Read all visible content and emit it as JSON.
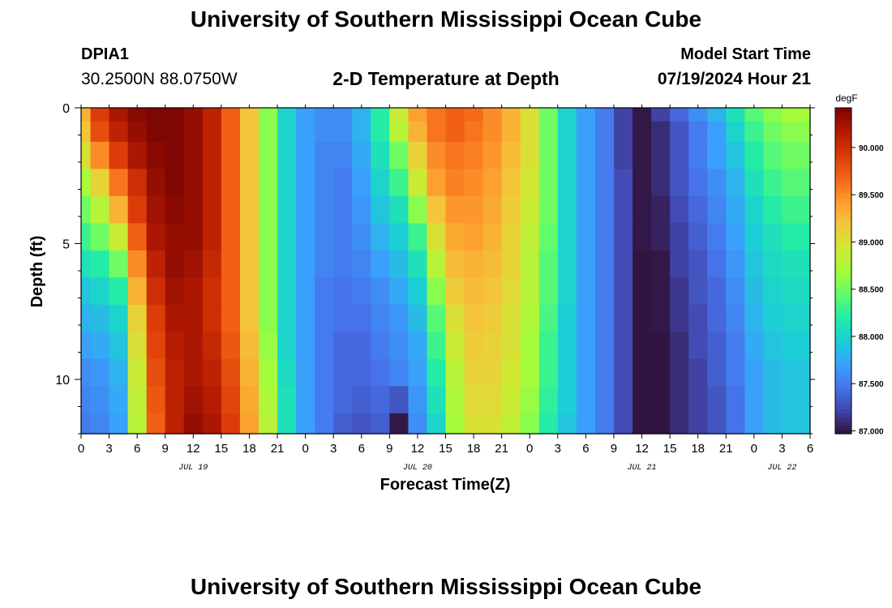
{
  "header": {
    "title": "University of Southern Mississippi Ocean Cube",
    "station": "DPIA1",
    "coords": "30.2500N  88.0750W",
    "plot_title": "2-D Temperature at Depth",
    "start_label": "Model Start Time",
    "start_value": "07/19/2024 Hour 21"
  },
  "footer": {
    "title": "University of Southern Mississippi Ocean Cube"
  },
  "colors": {
    "scale": [
      "#30123b",
      "#4145ab",
      "#4675ed",
      "#39a2fc",
      "#1bcfd4",
      "#24eca6",
      "#61fc6c",
      "#a4fc3b",
      "#d1e834",
      "#f3c63a",
      "#fe9b2d",
      "#f36315",
      "#d93806",
      "#b11901",
      "#7a0403"
    ]
  },
  "chart_data": {
    "type": "heatmap",
    "xlabel": "Forecast Time(Z)",
    "ylabel": "Depth (ft)",
    "x_tick_labels": [
      "0",
      "3",
      "6",
      "9",
      "12",
      "15",
      "18",
      "21",
      "0",
      "3",
      "6",
      "9",
      "12",
      "15",
      "18",
      "21",
      "0",
      "3",
      "6",
      "9",
      "12",
      "15",
      "18",
      "21",
      "0",
      "3",
      "6"
    ],
    "date_labels": [
      {
        "text": "JUL 19",
        "hour": 12
      },
      {
        "text": "JUL 20",
        "hour": 36
      },
      {
        "text": "JUL 21",
        "hour": 60
      },
      {
        "text": "JUL 22",
        "hour": 75
      }
    ],
    "x_range_hours": [
      0,
      78
    ],
    "y_tick_labels": [
      "0",
      "5",
      "10"
    ],
    "y_ticks": [
      0,
      5,
      10
    ],
    "ylim": [
      0,
      12
    ],
    "colorbar": {
      "unit": "degF",
      "min": 86.97,
      "max": 90.42,
      "tick_labels": [
        "87.000",
        "87.500",
        "88.000",
        "88.500",
        "89.000",
        "89.500",
        "90.000"
      ],
      "ticks": [
        87.0,
        87.5,
        88.0,
        88.5,
        89.0,
        89.5,
        90.0
      ]
    },
    "depth_levels_ft": [
      0.25,
      0.75,
      1.75,
      2.75,
      3.75,
      4.75,
      5.75,
      6.75,
      7.75,
      8.75,
      9.75,
      10.75,
      11.75
    ],
    "time_hours": [
      0,
      2,
      4,
      6,
      8,
      10,
      12,
      14,
      16,
      18,
      20,
      22,
      24,
      26,
      28,
      30,
      32,
      34,
      36,
      38,
      40,
      42,
      44,
      46,
      48,
      50,
      52,
      54,
      56,
      58,
      60,
      62,
      64,
      66,
      68,
      70,
      72,
      74,
      76,
      78
    ],
    "temperature_degF": [
      [
        89.3,
        89.9,
        90.2,
        90.35,
        90.4,
        90.4,
        90.3,
        90.1,
        89.7,
        89.2,
        88.6,
        88.0,
        87.7,
        87.6,
        87.6,
        87.8,
        88.2,
        88.9,
        89.4,
        89.6,
        89.7,
        89.65,
        89.5,
        89.3,
        89.0,
        88.5,
        88.0,
        87.7,
        87.5,
        87.2,
        87.0,
        87.2,
        87.4,
        87.6,
        87.8,
        88.1,
        88.4,
        88.6,
        88.7,
        88.7
      ],
      [
        89.2,
        89.8,
        90.1,
        90.3,
        90.4,
        90.4,
        90.3,
        90.1,
        89.7,
        89.2,
        88.6,
        88.0,
        87.7,
        87.6,
        87.6,
        87.8,
        88.2,
        88.8,
        89.3,
        89.6,
        89.7,
        89.6,
        89.5,
        89.3,
        89.0,
        88.5,
        88.0,
        87.7,
        87.5,
        87.2,
        87.0,
        87.1,
        87.3,
        87.5,
        87.7,
        88.0,
        88.3,
        88.5,
        88.6,
        88.6
      ],
      [
        89.0,
        89.5,
        89.9,
        90.2,
        90.35,
        90.4,
        90.3,
        90.1,
        89.7,
        89.2,
        88.6,
        88.0,
        87.7,
        87.55,
        87.55,
        87.75,
        88.1,
        88.5,
        89.1,
        89.5,
        89.6,
        89.55,
        89.45,
        89.25,
        89.0,
        88.5,
        88.0,
        87.7,
        87.5,
        87.2,
        87.0,
        87.1,
        87.3,
        87.5,
        87.7,
        87.9,
        88.2,
        88.4,
        88.5,
        88.5
      ],
      [
        88.7,
        89.1,
        89.6,
        90.0,
        90.3,
        90.4,
        90.3,
        90.1,
        89.7,
        89.2,
        88.6,
        88.0,
        87.7,
        87.55,
        87.5,
        87.7,
        88.0,
        88.3,
        88.9,
        89.4,
        89.55,
        89.5,
        89.4,
        89.2,
        88.95,
        88.5,
        88.0,
        87.7,
        87.5,
        87.25,
        87.0,
        87.1,
        87.3,
        87.45,
        87.6,
        87.8,
        88.1,
        88.3,
        88.4,
        88.4
      ],
      [
        88.5,
        88.8,
        89.3,
        89.9,
        90.25,
        90.35,
        90.3,
        90.1,
        89.7,
        89.2,
        88.6,
        88.0,
        87.7,
        87.55,
        87.5,
        87.65,
        87.9,
        88.1,
        88.6,
        89.2,
        89.45,
        89.45,
        89.35,
        89.15,
        88.9,
        88.5,
        88.0,
        87.7,
        87.5,
        87.25,
        87.0,
        87.05,
        87.25,
        87.4,
        87.55,
        87.75,
        88.0,
        88.2,
        88.3,
        88.3
      ],
      [
        88.3,
        88.5,
        88.9,
        89.7,
        90.2,
        90.3,
        90.3,
        90.1,
        89.7,
        89.2,
        88.6,
        88.0,
        87.7,
        87.55,
        87.5,
        87.6,
        87.8,
        87.95,
        88.3,
        89.0,
        89.35,
        89.4,
        89.3,
        89.1,
        88.85,
        88.45,
        88.0,
        87.7,
        87.5,
        87.25,
        87.0,
        87.05,
        87.2,
        87.35,
        87.5,
        87.7,
        87.95,
        88.1,
        88.2,
        88.2
      ],
      [
        88.1,
        88.2,
        88.5,
        89.5,
        90.1,
        90.3,
        90.25,
        90.05,
        89.7,
        89.2,
        88.6,
        88.0,
        87.7,
        87.55,
        87.5,
        87.55,
        87.7,
        87.85,
        88.1,
        88.8,
        89.25,
        89.3,
        89.25,
        89.1,
        88.8,
        88.4,
        88.0,
        87.7,
        87.5,
        87.25,
        86.98,
        87.0,
        87.2,
        87.3,
        87.45,
        87.65,
        87.9,
        88.05,
        88.1,
        88.1
      ],
      [
        87.9,
        88.0,
        88.2,
        89.3,
        90.0,
        90.25,
        90.2,
        90.0,
        89.7,
        89.2,
        88.6,
        88.0,
        87.7,
        87.5,
        87.45,
        87.5,
        87.6,
        87.75,
        87.95,
        88.6,
        89.15,
        89.25,
        89.2,
        89.05,
        88.8,
        88.4,
        88.0,
        87.7,
        87.5,
        87.25,
        86.98,
        87.0,
        87.15,
        87.3,
        87.4,
        87.6,
        87.85,
        88.0,
        88.05,
        88.05
      ],
      [
        87.8,
        87.85,
        88.0,
        89.1,
        89.9,
        90.2,
        90.2,
        90.0,
        89.7,
        89.2,
        88.6,
        88.0,
        87.7,
        87.5,
        87.45,
        87.45,
        87.55,
        87.65,
        87.85,
        88.4,
        89.0,
        89.2,
        89.15,
        89.0,
        88.75,
        88.35,
        87.95,
        87.7,
        87.5,
        87.25,
        86.98,
        87.0,
        87.15,
        87.25,
        87.4,
        87.55,
        87.8,
        87.95,
        88.0,
        88.0
      ],
      [
        87.7,
        87.75,
        87.9,
        89.0,
        89.85,
        90.15,
        90.2,
        90.05,
        89.75,
        89.25,
        88.65,
        88.0,
        87.7,
        87.5,
        87.4,
        87.4,
        87.5,
        87.6,
        87.75,
        88.3,
        88.9,
        89.15,
        89.1,
        89.0,
        88.7,
        88.3,
        87.95,
        87.7,
        87.5,
        87.25,
        86.98,
        86.98,
        87.1,
        87.25,
        87.35,
        87.5,
        87.75,
        87.9,
        87.95,
        87.95
      ],
      [
        87.6,
        87.65,
        87.8,
        88.9,
        89.8,
        90.1,
        90.2,
        90.1,
        89.8,
        89.3,
        88.7,
        88.05,
        87.7,
        87.5,
        87.4,
        87.4,
        87.45,
        87.55,
        87.7,
        88.2,
        88.8,
        89.1,
        89.1,
        88.95,
        88.7,
        88.3,
        87.95,
        87.7,
        87.5,
        87.25,
        86.98,
        86.98,
        87.1,
        87.2,
        87.35,
        87.5,
        87.7,
        87.85,
        87.9,
        87.9
      ],
      [
        87.55,
        87.6,
        87.75,
        88.85,
        89.75,
        90.1,
        90.25,
        90.15,
        89.85,
        89.35,
        88.75,
        88.1,
        87.7,
        87.5,
        87.4,
        87.35,
        87.4,
        87.3,
        87.65,
        88.1,
        88.75,
        89.05,
        89.05,
        88.9,
        88.65,
        88.25,
        87.95,
        87.7,
        87.5,
        87.25,
        86.98,
        86.98,
        87.1,
        87.2,
        87.3,
        87.45,
        87.7,
        87.85,
        87.9,
        87.9
      ],
      [
        87.5,
        87.55,
        87.7,
        88.8,
        89.7,
        90.1,
        90.3,
        90.2,
        89.9,
        89.4,
        88.8,
        88.1,
        87.7,
        87.5,
        87.35,
        87.3,
        87.35,
        87.0,
        87.6,
        88.0,
        88.7,
        89.0,
        89.0,
        88.85,
        88.6,
        88.2,
        87.9,
        87.7,
        87.5,
        87.25,
        86.98,
        86.98,
        87.1,
        87.2,
        87.3,
        87.45,
        87.7,
        87.85,
        87.9,
        87.9
      ]
    ]
  }
}
